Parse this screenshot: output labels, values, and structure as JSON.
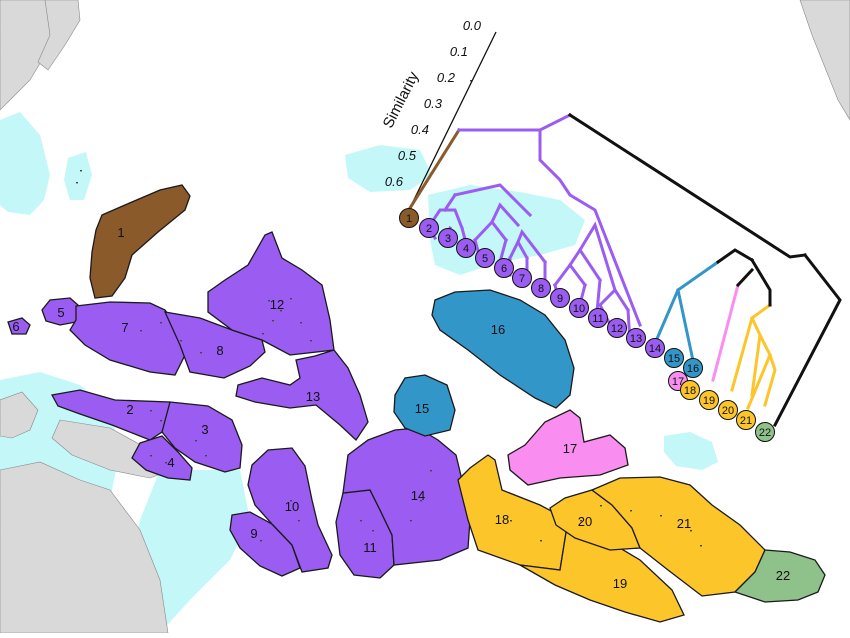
{
  "colors": {
    "ocean": "#ffffff",
    "land": "#d9d9d9",
    "shelf": "#c4f7f8",
    "brown": "#8b5a2b",
    "purple": "#9b5cf2",
    "blue": "#3396c9",
    "pink": "#f98df0",
    "yellow": "#fcc52a",
    "green": "#8fc18a",
    "outline": "#1a1a1a"
  },
  "scale": {
    "label": "Similarity",
    "ticks": [
      "0.0",
      "0.1",
      "0.2",
      "0.3",
      "0.4",
      "0.5",
      "0.6"
    ]
  },
  "regions": [
    {
      "label": "1",
      "group": "brown"
    },
    {
      "label": "2",
      "group": "purple"
    },
    {
      "label": "3",
      "group": "purple"
    },
    {
      "label": "4",
      "group": "purple"
    },
    {
      "label": "5",
      "group": "purple"
    },
    {
      "label": "6",
      "group": "purple"
    },
    {
      "label": "7",
      "group": "purple"
    },
    {
      "label": "8",
      "group": "purple"
    },
    {
      "label": "9",
      "group": "purple"
    },
    {
      "label": "10",
      "group": "purple"
    },
    {
      "label": "11",
      "group": "purple"
    },
    {
      "label": "12",
      "group": "purple"
    },
    {
      "label": "13",
      "group": "purple"
    },
    {
      "label": "14",
      "group": "purple"
    },
    {
      "label": "15",
      "group": "blue"
    },
    {
      "label": "16",
      "group": "blue"
    },
    {
      "label": "17",
      "group": "pink"
    },
    {
      "label": "18",
      "group": "yellow"
    },
    {
      "label": "19",
      "group": "yellow"
    },
    {
      "label": "20",
      "group": "yellow"
    },
    {
      "label": "21",
      "group": "yellow"
    },
    {
      "label": "22",
      "group": "green"
    }
  ]
}
